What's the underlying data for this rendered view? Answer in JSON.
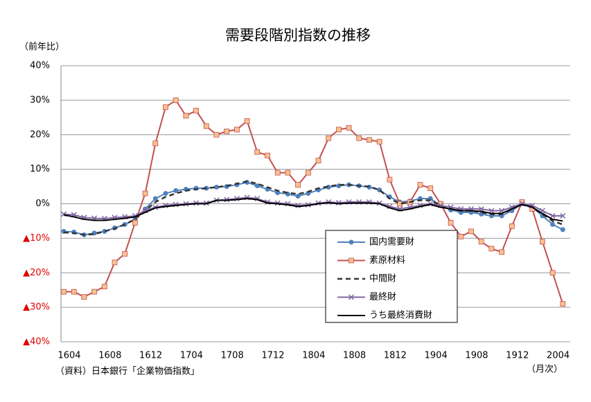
{
  "chart_data": {
    "type": "line",
    "title": "需要段階別指数の推移",
    "y_label": "（前年比）",
    "x_label": "（月次）",
    "source": "（資料）日本銀行「企業物価指数」",
    "categories": [
      "1604",
      null,
      null,
      null,
      "1608",
      null,
      null,
      null,
      "1612",
      null,
      null,
      null,
      "1704",
      null,
      null,
      null,
      "1708",
      null,
      null,
      null,
      "1712",
      null,
      null,
      null,
      "1804",
      null,
      null,
      null,
      "1808",
      null,
      null,
      null,
      "1812",
      null,
      null,
      null,
      "1904",
      null,
      null,
      null,
      "1908",
      null,
      null,
      null,
      "1912",
      null,
      null,
      null,
      "2004",
      null
    ],
    "ylim": [
      -40,
      40
    ],
    "yticks": [
      {
        "value": 40,
        "label": "40%"
      },
      {
        "value": 30,
        "label": "30%"
      },
      {
        "value": 20,
        "label": "20%"
      },
      {
        "value": 10,
        "label": "10%"
      },
      {
        "value": 0,
        "label": "0%"
      },
      {
        "value": -10,
        "label": "▲10%"
      },
      {
        "value": -20,
        "label": "▲20%"
      },
      {
        "value": -30,
        "label": "▲30%"
      },
      {
        "value": -40,
        "label": "▲40%"
      }
    ],
    "negative_label_color": "#e00000",
    "grid": true,
    "legend": "lower right",
    "series": [
      {
        "name": "国内需要財",
        "color": "#4f81bd",
        "marker": "circle",
        "dash": false,
        "values": [
          -8,
          -8.2,
          -9,
          -8.5,
          -8,
          -7,
          -6,
          -4.5,
          -1.5,
          1.5,
          3,
          3.8,
          4.2,
          4.5,
          4.5,
          4.8,
          5,
          5.5,
          6.2,
          5.2,
          4.2,
          3.2,
          2.8,
          2.2,
          3,
          4,
          4.8,
          5.2,
          5.5,
          5.2,
          4.8,
          4,
          2,
          0.5,
          0.8,
          1.5,
          1.5,
          -0.5,
          -1.8,
          -2.5,
          -2.5,
          -3,
          -3.5,
          -3.5,
          -2,
          0,
          -1,
          -3.5,
          -6,
          -7.5
        ]
      },
      {
        "name": "素原材料",
        "color": "#c0504d",
        "marker": "square",
        "marker_fill": "#fac090",
        "dash": false,
        "values": [
          -25.5,
          -25.5,
          -27,
          -25.5,
          -24,
          -17,
          -14.5,
          -5.5,
          3,
          17.5,
          28,
          30,
          25.5,
          27,
          22.5,
          20,
          21,
          21.5,
          24,
          15,
          14,
          9,
          9,
          5.5,
          9,
          12.5,
          19,
          21.5,
          22,
          19,
          18.5,
          18,
          7,
          0,
          0.5,
          5.5,
          4.5,
          0,
          -5.5,
          -9.5,
          -8,
          -11,
          -13,
          -14,
          -6.5,
          0.5,
          -1.5,
          -11,
          -20,
          -29
        ]
      },
      {
        "name": "中間財",
        "color": "#333333",
        "marker": "none",
        "dash": true,
        "values": [
          -8.3,
          -8.5,
          -9,
          -8.8,
          -8,
          -7.2,
          -6,
          -4.5,
          -2,
          0.5,
          2,
          3,
          3.8,
          4.2,
          4.5,
          4.8,
          5.2,
          5.8,
          6.5,
          5.8,
          4.8,
          3.8,
          3.2,
          2.8,
          3.5,
          4.5,
          5,
          5.5,
          5.5,
          5.2,
          5,
          4,
          1.5,
          0,
          0.5,
          1,
          1,
          -0.5,
          -1.5,
          -2,
          -2,
          -2.5,
          -3,
          -3,
          -1.5,
          0,
          -1,
          -3,
          -5,
          -6
        ]
      },
      {
        "name": "最終財",
        "color": "#8064a2",
        "marker": "x",
        "dash": false,
        "values": [
          -3,
          -3.2,
          -4,
          -4.2,
          -4.3,
          -4,
          -3.8,
          -3.5,
          -2,
          -1,
          -0.5,
          -0.2,
          0,
          0.2,
          0.2,
          1,
          1.2,
          1.5,
          1.8,
          1.5,
          0.5,
          0.2,
          0,
          -0.5,
          -0.3,
          0.2,
          0.5,
          0.3,
          0.5,
          0.5,
          0.5,
          0.2,
          -0.8,
          -1.5,
          -1,
          -0.5,
          0,
          -0.5,
          -1,
          -1.5,
          -1.5,
          -1.5,
          -2,
          -2,
          -1,
          0,
          -0.5,
          -2,
          -3.5,
          -3.5
        ]
      },
      {
        "name": "うち最終消費財",
        "color": "#000000",
        "marker": "none",
        "dash": false,
        "values": [
          -3.2,
          -3.8,
          -4.5,
          -4.8,
          -4.8,
          -4.5,
          -4.2,
          -3.8,
          -2.5,
          -1.2,
          -0.8,
          -0.5,
          -0.2,
          0,
          0,
          1,
          1,
          1.2,
          1.5,
          1.2,
          0.2,
          0,
          -0.3,
          -0.8,
          -0.5,
          0,
          0.3,
          0,
          0.2,
          0.2,
          0.2,
          0,
          -1.2,
          -2,
          -1.5,
          -0.8,
          -0.2,
          -1,
          -1.5,
          -2,
          -2,
          -2.2,
          -2.8,
          -2.8,
          -1.5,
          -0.2,
          -1,
          -2.8,
          -4.5,
          -5
        ]
      }
    ]
  }
}
